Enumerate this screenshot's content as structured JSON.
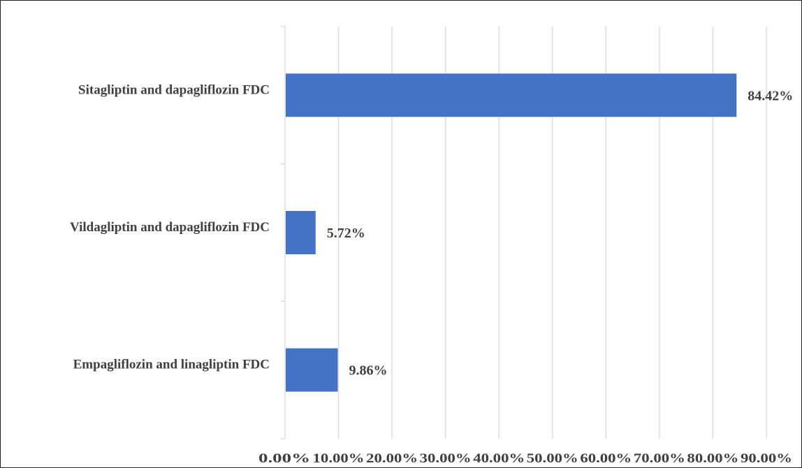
{
  "chart_data": {
    "type": "bar",
    "orientation": "horizontal",
    "title": "",
    "xlabel": "",
    "ylabel": "",
    "categories": [
      "Sitagliptin and dapagliflozin FDC",
      "Vildagliptin and dapagliflozin FDC",
      "Empagliflozin and linagliptin FDC"
    ],
    "values": [
      84.42,
      5.72,
      9.86
    ],
    "data_labels": [
      "84.42%",
      "5.72%",
      "9.86%"
    ],
    "xlim": [
      0,
      90
    ],
    "x_ticks": [
      0,
      10,
      20,
      30,
      40,
      50,
      60,
      70,
      80,
      90
    ],
    "x_tick_labels": [
      "0.00%",
      "10.00%",
      "20.00%",
      "30.00%",
      "40.00%",
      "50.00%",
      "60.00%",
      "70.00%",
      "80.00%",
      "90.00%"
    ],
    "grid": true,
    "legend": "none",
    "bar_color": "#4472C4",
    "grid_color": "#D9D9D9"
  }
}
